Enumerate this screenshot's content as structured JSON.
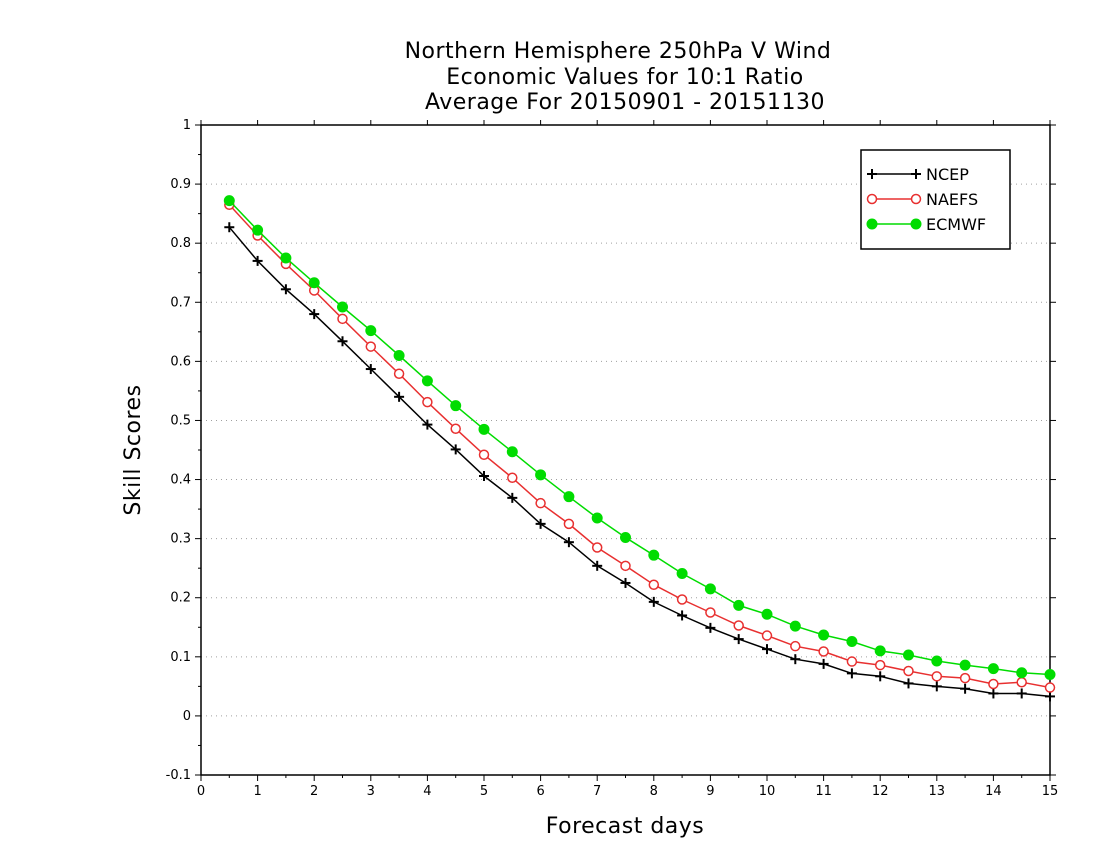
{
  "chart_data": {
    "type": "line",
    "title": [
      "Northern Hemisphere 250hPa V Wind",
      "Economic Values for 10:1 Ratio",
      "Average For 20150901 - 20151130"
    ],
    "xlabel": "Forecast days",
    "ylabel": "Skill Scores",
    "xlim": [
      0,
      15
    ],
    "ylim": [
      -0.1,
      1
    ],
    "xticks": [
      0,
      1,
      2,
      3,
      4,
      5,
      6,
      7,
      8,
      9,
      10,
      11,
      12,
      13,
      14,
      15
    ],
    "yticks": [
      -0.1,
      0,
      0.1,
      0.2,
      0.3,
      0.4,
      0.5,
      0.6,
      0.7,
      0.8,
      0.9,
      1
    ],
    "ytick_labels": [
      "-0.1",
      "0",
      "0.1",
      "0.2",
      "0.3",
      "0.4",
      "0.5",
      "0.6",
      "0.7",
      "0.8",
      "0.9",
      "1"
    ],
    "grid": "horizontal-dotted",
    "legend_position": "top-right",
    "x": [
      0.5,
      1,
      1.5,
      2,
      2.5,
      3,
      3.5,
      4,
      4.5,
      5,
      5.5,
      6,
      6.5,
      7,
      7.5,
      8,
      8.5,
      9,
      9.5,
      10,
      10.5,
      11,
      11.5,
      12,
      12.5,
      13,
      13.5,
      14,
      14.5,
      15
    ],
    "series": [
      {
        "name": "NCEP",
        "color": "#000000",
        "marker": "plus",
        "values": [
          0.827,
          0.77,
          0.722,
          0.68,
          0.634,
          0.587,
          0.54,
          0.493,
          0.451,
          0.406,
          0.369,
          0.325,
          0.294,
          0.254,
          0.225,
          0.193,
          0.17,
          0.149,
          0.13,
          0.113,
          0.096,
          0.088,
          0.072,
          0.067,
          0.055,
          0.05,
          0.046,
          0.038,
          0.038,
          0.033
        ]
      },
      {
        "name": "NAEFS",
        "color": "#e83030",
        "marker": "open-circle",
        "values": [
          0.865,
          0.813,
          0.765,
          0.72,
          0.672,
          0.625,
          0.579,
          0.531,
          0.486,
          0.442,
          0.403,
          0.36,
          0.325,
          0.285,
          0.254,
          0.222,
          0.197,
          0.175,
          0.153,
          0.136,
          0.118,
          0.109,
          0.092,
          0.086,
          0.076,
          0.067,
          0.064,
          0.054,
          0.057,
          0.048
        ]
      },
      {
        "name": "ECMWF",
        "color": "#00dc00",
        "marker": "filled-circle",
        "values": [
          0.872,
          0.822,
          0.775,
          0.733,
          0.692,
          0.652,
          0.61,
          0.567,
          0.525,
          0.485,
          0.447,
          0.408,
          0.371,
          0.335,
          0.302,
          0.272,
          0.241,
          0.215,
          0.187,
          0.172,
          0.152,
          0.137,
          0.126,
          0.11,
          0.103,
          0.093,
          0.086,
          0.08,
          0.073,
          0.07
        ]
      }
    ]
  }
}
